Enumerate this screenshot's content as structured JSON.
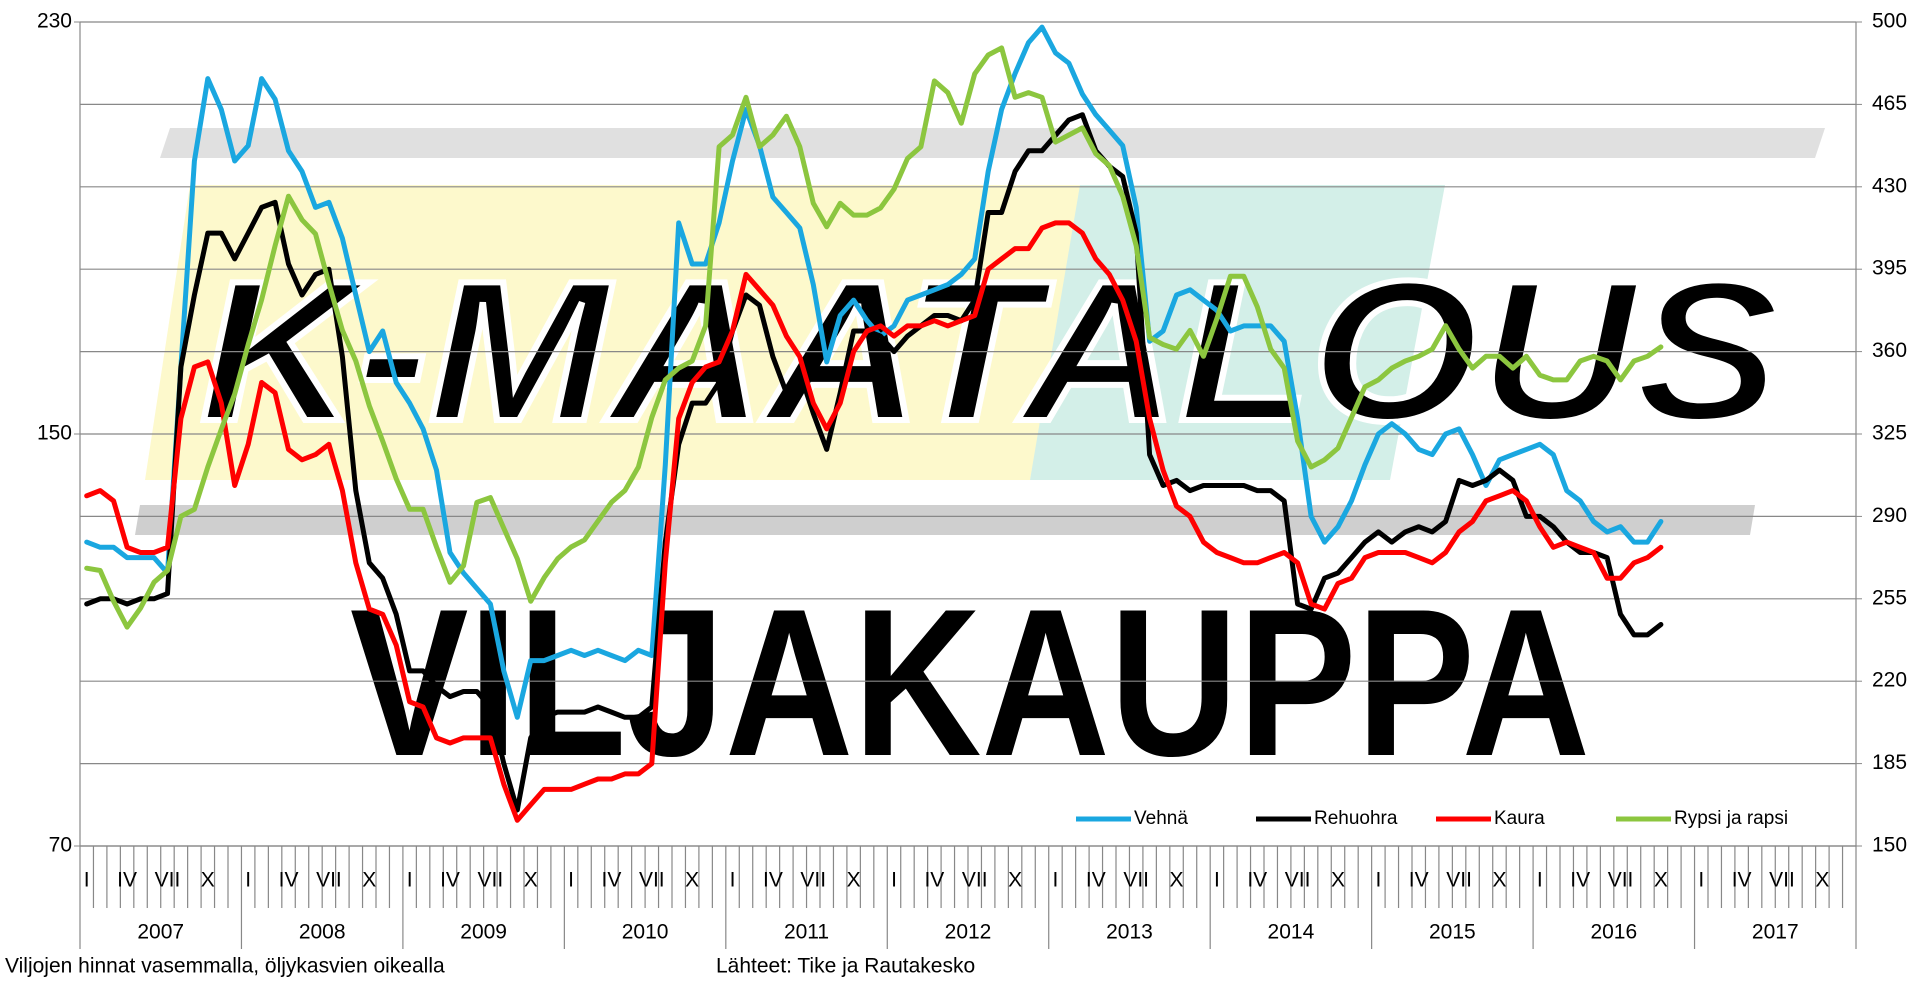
{
  "chart_data": {
    "type": "line",
    "watermark": [
      "K-MAATALOUS",
      "VILJAKAUPPA"
    ],
    "note_left": "Viljojen hinnat vasemmalla, öljykasvien oikealla",
    "note_right": "Lähteet: Tike ja Rautakesko",
    "years": [
      "2007",
      "2008",
      "2009",
      "2010",
      "2011",
      "2012",
      "2013",
      "2014",
      "2015",
      "2016",
      "2017"
    ],
    "categories": [
      "I",
      null,
      null,
      "IV",
      null,
      null,
      "VII",
      null,
      null,
      "X",
      null,
      null,
      "I",
      null,
      null,
      "IV",
      null,
      null,
      "VII",
      null,
      null,
      "X",
      null,
      null,
      "I",
      null,
      null,
      "IV",
      null,
      null,
      "VII",
      null,
      null,
      "X",
      null,
      null,
      "I",
      null,
      null,
      "IV",
      null,
      null,
      "VII",
      null,
      null,
      "X",
      null,
      null,
      "I",
      null,
      null,
      "IV",
      null,
      null,
      "VII",
      null,
      null,
      "X",
      null,
      null,
      "I",
      null,
      null,
      "IV",
      null,
      null,
      "VII",
      null,
      null,
      "X",
      null,
      null,
      "I",
      null,
      null,
      "IV",
      null,
      null,
      "VII",
      null,
      null,
      "X",
      null,
      null,
      "I",
      null,
      null,
      "IV",
      null,
      null,
      "VII",
      null,
      null,
      "X",
      null,
      null,
      "I",
      null,
      null,
      "IV",
      null,
      null,
      "VII",
      null,
      null,
      "X",
      null,
      null,
      "I",
      null,
      null,
      "IV",
      null,
      null,
      "VII",
      null,
      null,
      "X",
      null,
      null,
      "I",
      null,
      null,
      "IV",
      null,
      null,
      "VII",
      null,
      null,
      "X",
      null,
      null
    ],
    "series": [
      {
        "name": "Vehnä",
        "color": "#1aa7e0",
        "values": [
          129,
          128,
          128,
          126,
          126,
          126,
          123,
          163,
          203,
          219,
          213,
          203,
          206,
          219,
          215,
          205,
          201,
          194,
          195,
          188,
          177,
          166,
          170,
          160,
          156,
          151,
          143,
          127,
          123,
          120,
          117,
          104,
          95,
          106,
          106,
          107,
          108,
          107,
          108,
          107,
          106,
          108,
          107,
          144,
          191,
          183,
          183,
          191,
          203,
          213,
          206,
          196,
          193,
          190,
          179,
          164,
          173,
          176,
          172,
          169,
          171,
          176,
          177,
          178,
          179,
          181,
          184,
          201,
          213,
          220,
          226,
          229,
          224,
          222,
          216,
          212,
          209,
          206,
          194,
          168,
          170,
          177,
          178,
          176,
          174,
          170,
          171,
          171,
          171,
          168,
          153,
          134,
          129,
          132,
          137,
          144,
          150,
          152,
          150,
          147,
          146,
          150,
          151,
          146,
          140,
          145,
          146,
          147,
          148,
          146,
          139,
          137,
          133,
          131,
          132,
          129,
          129,
          133,
          null,
          null,
          null,
          null,
          null,
          null,
          null,
          null,
          null,
          null,
          null,
          null,
          null,
          null
        ]
      },
      {
        "name": "Rehuohra",
        "color": "#000000",
        "values": [
          117,
          118,
          118,
          117,
          118,
          118,
          119,
          163,
          177,
          189,
          189,
          184,
          189,
          194,
          195,
          183,
          177,
          181,
          182,
          165,
          139,
          125,
          122,
          115,
          104,
          104,
          101,
          99,
          100,
          100,
          97,
          86,
          77,
          91,
          95,
          96,
          96,
          96,
          97,
          96,
          95,
          95,
          97,
          129,
          148,
          156,
          156,
          160,
          170,
          177,
          175,
          165,
          158,
          162,
          154,
          147,
          158,
          170,
          170,
          169,
          166,
          169,
          171,
          173,
          173,
          172,
          176,
          193,
          193,
          201,
          205,
          205,
          208,
          211,
          212,
          205,
          202,
          200,
          189,
          146,
          140,
          141,
          139,
          140,
          140,
          140,
          140,
          139,
          139,
          137,
          117,
          116,
          122,
          123,
          126,
          129,
          131,
          129,
          131,
          132,
          131,
          133,
          141,
          140,
          141,
          143,
          141,
          134,
          134,
          132,
          129,
          127,
          127,
          126,
          115,
          111,
          111,
          113,
          null,
          null,
          null,
          null,
          null,
          null,
          null,
          null,
          null,
          null,
          null,
          null,
          null,
          null
        ]
      },
      {
        "name": "Kaura",
        "color": "#ff0000",
        "values": [
          138,
          139,
          137,
          128,
          127,
          127,
          128,
          153,
          163,
          164,
          156,
          140,
          148,
          160,
          158,
          147,
          145,
          146,
          148,
          139,
          125,
          116,
          115,
          109,
          98,
          97,
          91,
          90,
          91,
          91,
          91,
          82,
          75,
          78,
          81,
          81,
          81,
          82,
          83,
          83,
          84,
          84,
          86,
          125,
          153,
          160,
          163,
          164,
          170,
          181,
          178,
          175,
          169,
          165,
          156,
          151,
          156,
          166,
          170,
          171,
          169,
          171,
          171,
          172,
          171,
          172,
          173,
          182,
          184,
          186,
          186,
          190,
          191,
          191,
          189,
          184,
          181,
          176,
          168,
          153,
          143,
          136,
          134,
          129,
          127,
          126,
          125,
          125,
          126,
          127,
          125,
          117,
          116,
          121,
          122,
          126,
          127,
          127,
          127,
          126,
          125,
          127,
          131,
          133,
          137,
          138,
          139,
          137,
          132,
          128,
          129,
          128,
          127,
          122,
          122,
          125,
          126,
          128,
          null,
          null,
          null,
          null,
          null,
          null,
          null,
          null,
          null,
          null,
          null,
          null,
          null,
          null
        ]
      },
      {
        "name": "Rypsi ja rapsi",
        "color": "#8cc63f",
        "axis": "y2",
        "values": [
          268,
          267,
          254,
          243,
          251,
          262,
          267,
          290,
          293,
          311,
          327,
          342,
          363,
          382,
          405,
          426,
          416,
          410,
          389,
          369,
          356,
          337,
          322,
          306,
          293,
          293,
          277,
          262,
          269,
          296,
          298,
          285,
          272,
          254,
          264,
          272,
          277,
          280,
          288,
          296,
          301,
          311,
          332,
          348,
          353,
          356,
          371,
          447,
          452,
          468,
          447,
          452,
          460,
          447,
          423,
          413,
          423,
          418,
          418,
          421,
          429,
          442,
          447,
          475,
          470,
          457,
          478,
          486,
          489,
          468,
          470,
          468,
          449,
          452,
          455,
          444,
          439,
          426,
          405,
          366,
          363,
          361,
          369,
          358,
          374,
          392,
          392,
          379,
          361,
          353,
          322,
          311,
          314,
          319,
          332,
          345,
          348,
          353,
          356,
          358,
          361,
          371,
          361,
          353,
          358,
          358,
          353,
          358,
          350,
          348,
          348,
          356,
          358,
          356,
          348,
          356,
          358,
          362,
          null,
          null,
          null,
          null,
          null,
          null,
          null,
          null,
          null,
          null,
          null,
          null,
          null,
          null
        ]
      }
    ],
    "ylim": [
      70,
      230
    ],
    "yticks": [
      70,
      150,
      230
    ],
    "y2lim": [
      150,
      500
    ],
    "y2ticks": [
      150,
      185,
      220,
      255,
      290,
      325,
      360,
      395,
      430,
      465,
      500
    ],
    "grid": true,
    "legend": "lower right"
  }
}
